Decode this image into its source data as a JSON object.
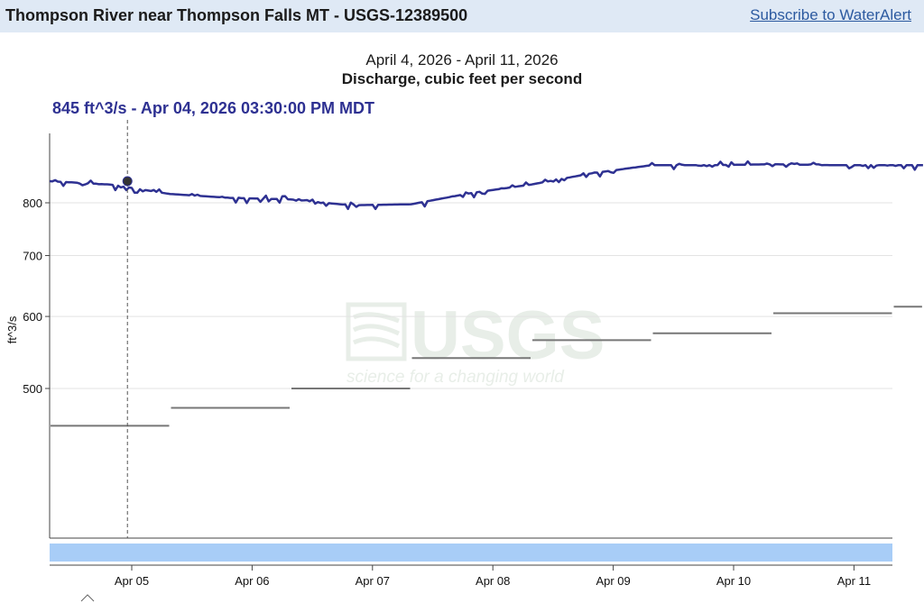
{
  "header": {
    "title": "Thompson River near Thompson Falls MT - USGS-12389500",
    "subscribe_label": "Subscribe to WaterAlert"
  },
  "chart": {
    "date_range": "April 4, 2026 - April 11, 2026",
    "parameter": "Discharge, cubic feet per second",
    "tooltip": "845 ft^3/s - Apr 04, 2026 03:30:00 PM MDT",
    "watermark_text": "USGS",
    "watermark_tagline": "science for a changing world"
  },
  "colors": {
    "series": "#2e3192",
    "stats": "#777777",
    "brush": "#a8cdf7",
    "watermark": "#e8eee8"
  },
  "chart_data": {
    "type": "line",
    "x_range": [
      "2026-04-04",
      "2026-04-11"
    ],
    "ylabel": "ft^3/s",
    "y_scale": "log",
    "y_ticks": [
      500,
      600,
      700,
      800
    ],
    "x_tick_labels": [
      "Apr 05",
      "Apr 06",
      "Apr 07",
      "Apr 08",
      "Apr 09",
      "Apr 10",
      "Apr 11"
    ],
    "grid": true,
    "series": [
      {
        "values": [
          {
            "t": "2026-04-04 00:00",
            "y": 845
          },
          {
            "t": "2026-04-04 12:00",
            "y": 838
          },
          {
            "t": "2026-04-05 00:00",
            "y": 818
          },
          {
            "t": "2026-04-05 12:00",
            "y": 810
          },
          {
            "t": "2026-04-06 00:00",
            "y": 807
          },
          {
            "t": "2026-04-06 12:00",
            "y": 795
          },
          {
            "t": "2026-04-07 00:00",
            "y": 797
          },
          {
            "t": "2026-04-07 12:00",
            "y": 820
          },
          {
            "t": "2026-04-08 00:00",
            "y": 838
          },
          {
            "t": "2026-04-08 12:00",
            "y": 862
          },
          {
            "t": "2026-04-09 00:00",
            "y": 880
          },
          {
            "t": "2026-04-09 12:00",
            "y": 880
          },
          {
            "t": "2026-04-10 00:00",
            "y": 882
          },
          {
            "t": "2026-04-10 12:00",
            "y": 880
          },
          {
            "t": "2026-04-11 00:00",
            "y": 880
          },
          {
            "t": "2026-04-11 06:00",
            "y": 880
          }
        ]
      },
      {
        "type": "step",
        "values": [
          {
            "start": "2026-04-04",
            "end": "2026-04-05",
            "y": 455
          },
          {
            "start": "2026-04-05",
            "end": "2026-04-06",
            "y": 476
          },
          {
            "start": "2026-04-06",
            "end": "2026-04-07",
            "y": 500
          },
          {
            "start": "2026-04-07",
            "end": "2026-04-08",
            "y": 540
          },
          {
            "start": "2026-04-08",
            "end": "2026-04-09",
            "y": 565
          },
          {
            "start": "2026-04-09",
            "end": "2026-04-10",
            "y": 575
          },
          {
            "start": "2026-04-10",
            "end": "2026-04-11",
            "y": 605
          },
          {
            "start": "2026-04-11",
            "end": "2026-04-11 06:00",
            "y": 615
          }
        ]
      }
    ],
    "tooltip_point": {
      "t": "2026-04-04 15:30",
      "y": 845
    }
  }
}
